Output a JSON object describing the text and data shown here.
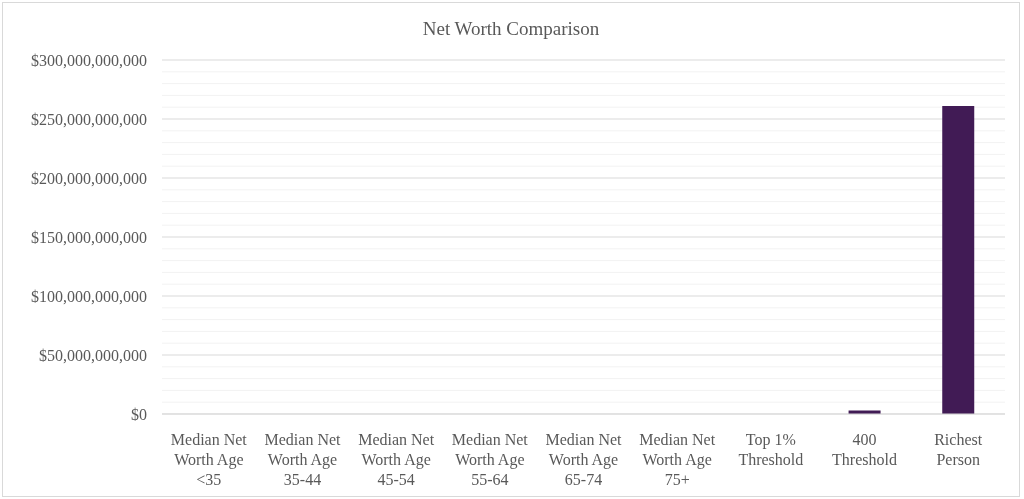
{
  "chart_data": {
    "type": "bar",
    "title": "Net Worth Comparison",
    "categories": [
      "Median Net Worth Age <35",
      "Median Net Worth Age 35-44",
      "Median Net Worth Age 45-54",
      "Median Net Worth Age 55-64",
      "Median Net Worth Age 65-74",
      "Median Net Worth Age 75+",
      "Top 1% Threshold",
      "400 Threshold",
      "Richest Person"
    ],
    "values": [
      0,
      0,
      0,
      0,
      0,
      0,
      0,
      3000000000,
      261000000000
    ],
    "color": "#411b55",
    "ylim": [
      0,
      300000000000
    ],
    "yticks": [
      {
        "value": 0,
        "label": "$0"
      },
      {
        "value": 10000000000,
        "label": null
      },
      {
        "value": 20000000000,
        "label": null
      },
      {
        "value": 30000000000,
        "label": null
      },
      {
        "value": 40000000000,
        "label": null
      },
      {
        "value": 50000000000,
        "label": "$50,000,000,000"
      },
      {
        "value": 60000000000,
        "label": null
      },
      {
        "value": 70000000000,
        "label": null
      },
      {
        "value": 80000000000,
        "label": null
      },
      {
        "value": 90000000000,
        "label": null
      },
      {
        "value": 100000000000,
        "label": "$100,000,000,000"
      },
      {
        "value": 110000000000,
        "label": null
      },
      {
        "value": 120000000000,
        "label": null
      },
      {
        "value": 130000000000,
        "label": null
      },
      {
        "value": 140000000000,
        "label": null
      },
      {
        "value": 150000000000,
        "label": "$150,000,000,000"
      },
      {
        "value": 160000000000,
        "label": null
      },
      {
        "value": 170000000000,
        "label": null
      },
      {
        "value": 180000000000,
        "label": null
      },
      {
        "value": 190000000000,
        "label": null
      },
      {
        "value": 200000000000,
        "label": "$200,000,000,000"
      },
      {
        "value": 210000000000,
        "label": null
      },
      {
        "value": 220000000000,
        "label": null
      },
      {
        "value": 230000000000,
        "label": null
      },
      {
        "value": 240000000000,
        "label": null
      },
      {
        "value": 250000000000,
        "label": "$250,000,000,000"
      },
      {
        "value": 260000000000,
        "label": null
      },
      {
        "value": 270000000000,
        "label": null
      },
      {
        "value": 280000000000,
        "label": null
      },
      {
        "value": 290000000000,
        "label": null
      },
      {
        "value": 300000000000,
        "label": "$300,000,000,000"
      }
    ],
    "grid": "y"
  }
}
